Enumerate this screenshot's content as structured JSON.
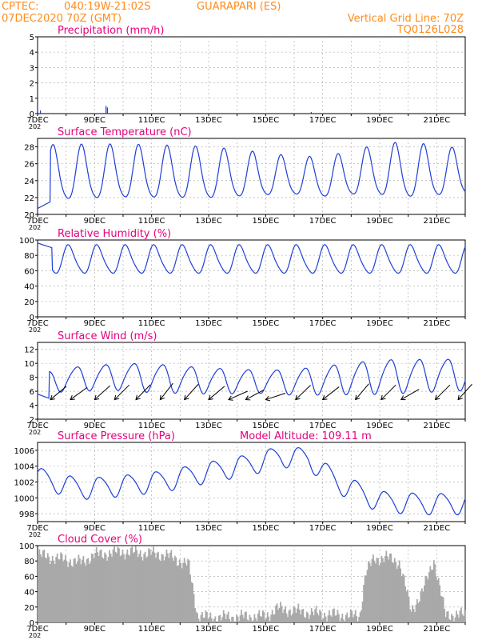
{
  "header": {
    "org": "CPTEC:",
    "coords": "040:19W-21:02S",
    "location": "GUARAPARI (ES)",
    "run_time": "07DEC2020 70Z (GMT)",
    "vgrid": "Vertical Grid Line: 70Z",
    "code": "TQ0126L028"
  },
  "colors": {
    "header": "#ff8c1a",
    "title": "#e6007e",
    "line": "#1f3fd6",
    "bar": "#a9a9a9",
    "grid": "#b0b0b0"
  },
  "x_axis": {
    "days": 15,
    "start": "7DEC",
    "tick_labels": [
      "7DEC",
      "9DEC",
      "11DEC",
      "13DEC",
      "15DEC",
      "17DEC",
      "19DEC",
      "21DEC"
    ],
    "year_label": "202"
  },
  "chart_data": [
    {
      "type": "bar",
      "title": "Precipitation (mm/h)",
      "ylim": [
        0,
        5
      ],
      "yticks": [
        0,
        1,
        2,
        3,
        4,
        5
      ],
      "x_days": [
        0.1,
        2.4,
        2.45,
        9.6
      ],
      "values": [
        0.2,
        0.5,
        0.4,
        0.1
      ]
    },
    {
      "type": "line",
      "title": "Surface Temperature (nC)",
      "ylim": [
        20,
        29
      ],
      "yticks": [
        20,
        22,
        24,
        26,
        28
      ],
      "amp_level": [
        [
          0,
          3.0
        ],
        [
          0.6,
          3.2
        ],
        [
          6,
          3.0
        ],
        [
          9,
          2.2
        ],
        [
          11,
          2.5
        ],
        [
          12,
          3.0
        ],
        [
          13,
          3.2
        ],
        [
          15,
          2.6
        ]
      ],
      "mean_level": [
        [
          0,
          24.6
        ],
        [
          3,
          24.8
        ],
        [
          8,
          24.5
        ],
        [
          10,
          24.2
        ],
        [
          12,
          25.0
        ],
        [
          15,
          24.8
        ]
      ],
      "start_values": [
        [
          0,
          20.7
        ],
        [
          0.45,
          21.5
        ]
      ],
      "peak_phase": 0.55
    },
    {
      "type": "line",
      "title": "Relative Humidity (%)",
      "ylim": [
        0,
        100
      ],
      "yticks": [
        0,
        20,
        40,
        60,
        80,
        100
      ],
      "amp_level": [
        [
          0,
          18
        ],
        [
          15,
          18
        ]
      ],
      "mean_level": [
        [
          0,
          74
        ],
        [
          15,
          74
        ]
      ],
      "start_values": [
        [
          0,
          96
        ],
        [
          0.5,
          90
        ]
      ],
      "peak_phase": 0.1
    },
    {
      "type": "line",
      "title": "Surface Wind (m/s)",
      "ylim": [
        2,
        13
      ],
      "yticks": [
        2,
        4,
        6,
        8,
        10,
        12
      ],
      "amp_level": [
        [
          0,
          1.5
        ],
        [
          4,
          2.0
        ],
        [
          8,
          1.6
        ],
        [
          12,
          2.4
        ],
        [
          15,
          2.2
        ]
      ],
      "mean_level": [
        [
          0,
          7.0
        ],
        [
          1,
          7.8
        ],
        [
          3,
          8.2
        ],
        [
          6,
          7.6
        ],
        [
          9,
          7.4
        ],
        [
          12,
          8.2
        ],
        [
          15,
          8.5
        ]
      ],
      "start_values": [
        [
          0,
          5.6
        ],
        [
          0.4,
          5.0
        ]
      ],
      "peak_phase": 0.35,
      "vectors": [
        [
          0.45,
          -40
        ],
        [
          1.15,
          -36
        ],
        [
          2.0,
          -42
        ],
        [
          2.7,
          -45
        ],
        [
          3.45,
          -46
        ],
        [
          4.3,
          -52
        ],
        [
          5.15,
          -48
        ],
        [
          6.0,
          -40
        ],
        [
          6.7,
          -24
        ],
        [
          7.3,
          -28
        ],
        [
          8.0,
          -18
        ],
        [
          9.05,
          -44
        ],
        [
          10.0,
          -38
        ],
        [
          11.15,
          -50
        ],
        [
          12.05,
          -45
        ],
        [
          12.75,
          -30
        ],
        [
          13.95,
          -45
        ],
        [
          14.75,
          -48
        ]
      ]
    },
    {
      "type": "line",
      "title": "Surface Pressure (hPa)",
      "ylim": [
        997,
        1007
      ],
      "yticks": [
        998,
        1000,
        1002,
        1004,
        1006
      ],
      "extra_label": "Model Altitude: 109.11 m",
      "amp_level": [
        [
          0,
          1.3
        ],
        [
          15,
          1.3
        ]
      ],
      "mean_level": [
        [
          0,
          1002.6
        ],
        [
          1.5,
          1001.2
        ],
        [
          3,
          1001.6
        ],
        [
          4.5,
          1002.2
        ],
        [
          6,
          1003.3
        ],
        [
          7.5,
          1004.3
        ],
        [
          8.5,
          1005.3
        ],
        [
          9.5,
          1005.0
        ],
        [
          10.5,
          1002.0
        ],
        [
          12,
          999.6
        ],
        [
          13.5,
          999.3
        ],
        [
          15,
          999.3
        ]
      ],
      "start_values": [
        [
          0,
          1003.3
        ]
      ],
      "peak_phase": 0.2
    },
    {
      "type": "bar",
      "title": "Cloud Cover (%)",
      "ylim": [
        0,
        100
      ],
      "yticks": [
        0,
        20,
        40,
        60,
        80,
        100
      ],
      "levels": [
        [
          0,
          88
        ],
        [
          1.5,
          78
        ],
        [
          2,
          88
        ],
        [
          3,
          92
        ],
        [
          4.5,
          88
        ],
        [
          5.3,
          75
        ],
        [
          5.6,
          10
        ],
        [
          6,
          6
        ],
        [
          8,
          8
        ],
        [
          8.4,
          18
        ],
        [
          9.7,
          12
        ],
        [
          10.3,
          10
        ],
        [
          11.3,
          8
        ],
        [
          11.5,
          65
        ],
        [
          11.8,
          82
        ],
        [
          12.2,
          85
        ],
        [
          12.7,
          78
        ],
        [
          13.1,
          15
        ],
        [
          13.5,
          40
        ],
        [
          13.9,
          82
        ],
        [
          14.3,
          10
        ],
        [
          15,
          10
        ]
      ]
    }
  ]
}
